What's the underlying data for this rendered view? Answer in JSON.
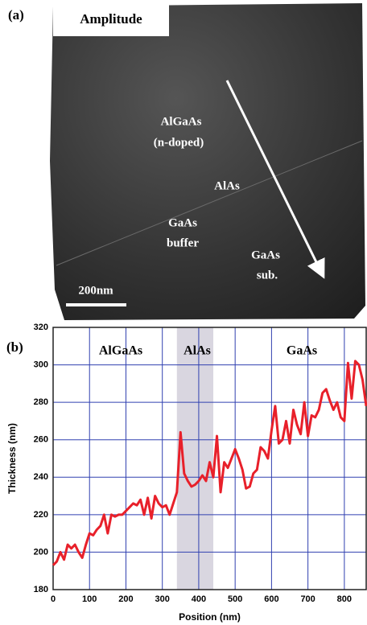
{
  "panel_a": {
    "panel_label": "(a)",
    "title": "Amplitude",
    "labels": [
      "AlGaAs",
      "(n-doped)",
      "AlAs",
      "GaAs",
      "buffer",
      "GaAs",
      "sub."
    ],
    "scale_bar": "200nm"
  },
  "chart_data": {
    "type": "line",
    "panel_label": "(b)",
    "x_label": "Position (nm)",
    "y_label": "Thickness (nm)",
    "region_labels": [
      "AlGaAs",
      "AlAs",
      "GaAs"
    ],
    "shaded_region": [
      340,
      440
    ],
    "shade_color": "#d9d6e0",
    "x": [
      0,
      10,
      20,
      30,
      40,
      50,
      60,
      70,
      80,
      90,
      100,
      110,
      120,
      130,
      140,
      150,
      160,
      170,
      180,
      190,
      200,
      210,
      220,
      230,
      240,
      250,
      260,
      270,
      280,
      290,
      300,
      310,
      320,
      330,
      340,
      350,
      360,
      370,
      380,
      390,
      400,
      410,
      420,
      430,
      440,
      450,
      460,
      470,
      480,
      490,
      500,
      510,
      520,
      530,
      540,
      550,
      560,
      570,
      580,
      590,
      600,
      610,
      620,
      630,
      640,
      650,
      660,
      670,
      680,
      690,
      700,
      710,
      720,
      730,
      740,
      750,
      760,
      770,
      780,
      790,
      800,
      810,
      820,
      830,
      840,
      850,
      860
    ],
    "values": [
      193,
      195,
      200,
      196,
      204,
      202,
      204,
      200,
      197,
      204,
      210,
      209,
      212,
      214,
      220,
      210,
      220,
      219,
      220,
      220,
      222,
      224,
      226,
      225,
      228,
      220,
      229,
      218,
      230,
      226,
      224,
      225,
      220,
      226,
      232,
      264,
      242,
      238,
      235,
      236,
      238,
      241,
      238,
      248,
      240,
      262,
      232,
      248,
      245,
      250,
      255,
      250,
      244,
      234,
      235,
      242,
      244,
      256,
      254,
      250,
      265,
      278,
      258,
      260,
      270,
      258,
      276,
      268,
      263,
      280,
      262,
      273,
      272,
      276,
      285,
      287,
      281,
      276,
      280,
      272,
      270,
      301,
      282,
      302,
      300,
      292,
      278
    ],
    "color": "#e8202a",
    "xlim": [
      0,
      860
    ],
    "ylim": [
      180,
      320
    ],
    "xticks": [
      0,
      100,
      200,
      300,
      400,
      500,
      600,
      700,
      800
    ],
    "yticks": [
      180,
      200,
      220,
      240,
      260,
      280,
      300,
      320
    ],
    "grid": true,
    "grid_color": "#3040b0"
  }
}
